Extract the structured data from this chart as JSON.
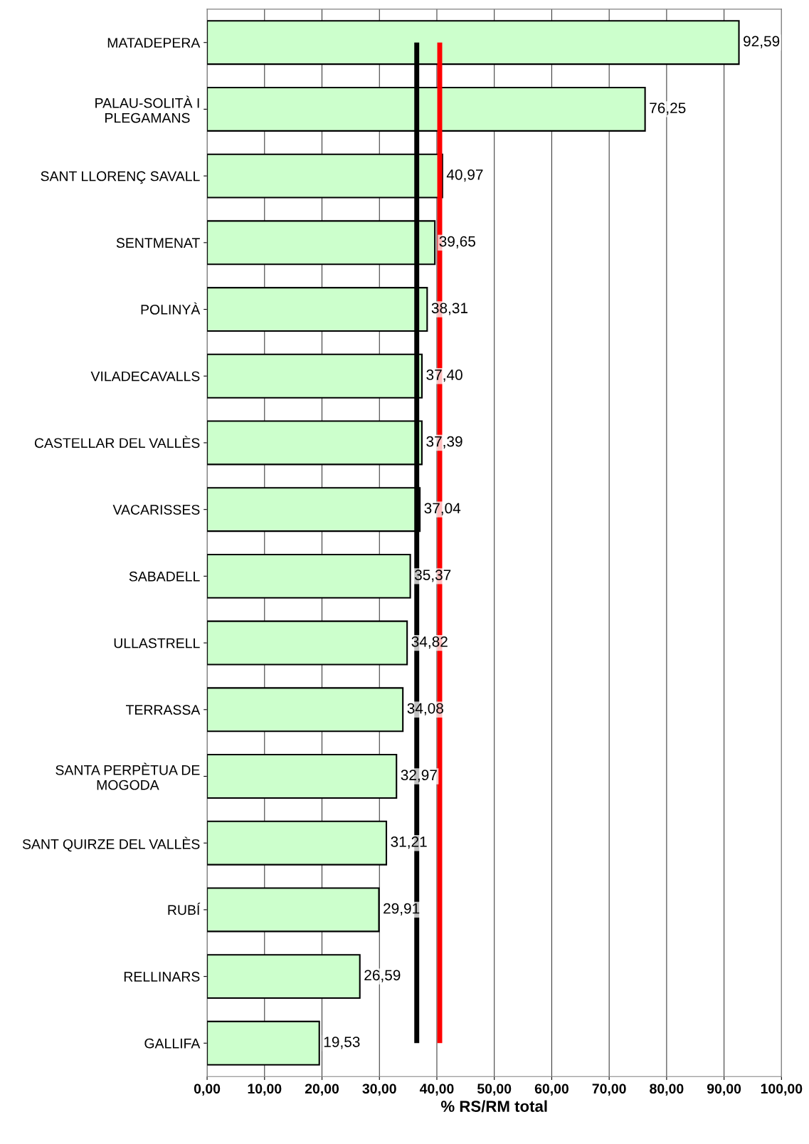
{
  "chart_data": {
    "type": "bar",
    "orientation": "horizontal",
    "xlabel": "% RS/RM total",
    "categories": [
      "MATADEPERA",
      "PALAU-SOLITÀ I\nPLEGAMANS",
      "SANT LLORENÇ SAVALL",
      "SENTMENAT",
      "POLINYÀ",
      "VILADECAVALLS",
      "CASTELLAR DEL VALLÈS",
      "VACARISSES",
      "SABADELL",
      "ULLASTRELL",
      "TERRASSA",
      "SANTA PERPÈTUA DE\nMOGODA",
      "SANT QUIRZE DEL VALLÈS",
      "RUBÍ",
      "RELLINARS",
      "GALLIFA"
    ],
    "values": [
      92.59,
      76.25,
      40.97,
      39.65,
      38.31,
      37.4,
      37.39,
      37.04,
      35.37,
      34.82,
      34.08,
      32.97,
      31.21,
      29.91,
      26.59,
      19.53
    ],
    "value_labels": [
      "92,59",
      "76,25",
      "40,97",
      "39,65",
      "38,31",
      "37,40",
      "37,39",
      "37,04",
      "35,37",
      "34,82",
      "34,08",
      "32,97",
      "31,21",
      "29,91",
      "26,59",
      "19,53"
    ],
    "color": "#ccffcc",
    "xlim": [
      0,
      100
    ],
    "xticks": [
      {
        "value": 0,
        "label": "0,00"
      },
      {
        "value": 10,
        "label": "10,00"
      },
      {
        "value": 20,
        "label": "20,00"
      },
      {
        "value": 30,
        "label": "30,00"
      },
      {
        "value": 40,
        "label": "40,00"
      },
      {
        "value": 50,
        "label": "50,00"
      },
      {
        "value": 60,
        "label": "60,00"
      },
      {
        "value": 70,
        "label": "70,00"
      },
      {
        "value": 80,
        "label": "80,00"
      },
      {
        "value": 90,
        "label": "90,00"
      },
      {
        "value": 100,
        "label": "100,00"
      }
    ],
    "ref_lines": [
      {
        "axis": "x",
        "value": 36.5,
        "color": "#000000"
      },
      {
        "axis": "x",
        "value": 40.5,
        "color": "#ff0000"
      }
    ],
    "grid": "x"
  }
}
